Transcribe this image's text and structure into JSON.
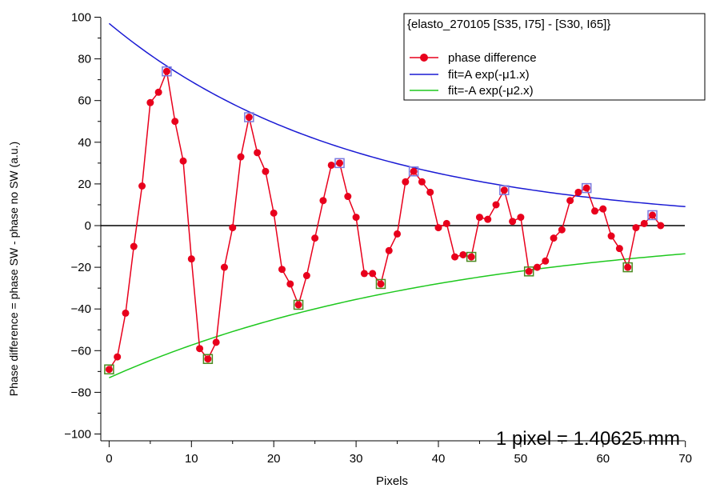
{
  "chart_data": {
    "type": "scatter",
    "title": "",
    "xlabel": "Pixels",
    "ylabel": "Phase difference = phase SW - phase no SW (a.u.)",
    "xlim": [
      -1,
      70
    ],
    "ylim": [
      -105,
      100
    ],
    "xticks": [
      0,
      10,
      20,
      30,
      40,
      50,
      60,
      70
    ],
    "yticks": [
      -100,
      -80,
      -60,
      -40,
      -20,
      0,
      20,
      40,
      60,
      80,
      100
    ],
    "annotation": "1 pixel = 1.40625 mm",
    "legend": {
      "title": "{elasto_270105 [S35, I75] - [S30, I65]}",
      "placement": "top-right",
      "entries": [
        "phase difference",
        "fit=A exp(-μ1.x)",
        "fit=-A exp(-μ2.x)"
      ]
    },
    "colors": {
      "data": "#e8001c",
      "fit_pos": "#1a1ad4",
      "fit_neg": "#1ec81e",
      "max_marker": "#7a7ae0",
      "min_marker": "#4a8a20"
    },
    "series": [
      {
        "name": "phase difference",
        "x": [
          0,
          1,
          2,
          3,
          4,
          5,
          6,
          7,
          8,
          9,
          10,
          11,
          12,
          13,
          14,
          15,
          16,
          17,
          18,
          19,
          20,
          21,
          22,
          23,
          24,
          25,
          26,
          27,
          28,
          29,
          30,
          31,
          32,
          33,
          34,
          35,
          36,
          37,
          38,
          39,
          40,
          41,
          42,
          43,
          44,
          45,
          46,
          47,
          48,
          49,
          50,
          51,
          52,
          53,
          54,
          55,
          56,
          57,
          58,
          59,
          60,
          61,
          62,
          63,
          64,
          65,
          66,
          67
        ],
        "y": [
          -69,
          -63,
          -42,
          -10,
          19,
          59,
          64,
          74,
          50,
          31,
          -16,
          -59,
          -64,
          -56,
          -20,
          -1,
          33,
          52,
          35,
          26,
          6,
          -21,
          -28,
          -38,
          -24,
          -6,
          12,
          29,
          30,
          14,
          4,
          -23,
          -23,
          -28,
          -12,
          -4,
          21,
          26,
          21,
          16,
          -1,
          1,
          -15,
          -14,
          -15,
          4,
          3,
          10,
          17,
          2,
          4,
          -22,
          -20,
          -17,
          -6,
          -2,
          12,
          16,
          18,
          7,
          8,
          -5,
          -11,
          -20,
          -1,
          1,
          5,
          0
        ]
      },
      {
        "name": "fit=A exp(-μ1.x)",
        "function": "A*exp(-mu1*x)",
        "A": 97,
        "mu1": 0.0338,
        "x_range": [
          0,
          70
        ]
      },
      {
        "name": "fit=-A exp(-μ2.x)",
        "function": "-A*exp(-mu2*x)",
        "A": 73,
        "mu2": 0.0241,
        "x_range": [
          0,
          70
        ]
      }
    ],
    "fit_maxima_x": [
      7,
      17,
      28,
      37,
      48,
      58,
      66
    ],
    "fit_minima_x": [
      0,
      12,
      23,
      33,
      44,
      51,
      63
    ]
  }
}
